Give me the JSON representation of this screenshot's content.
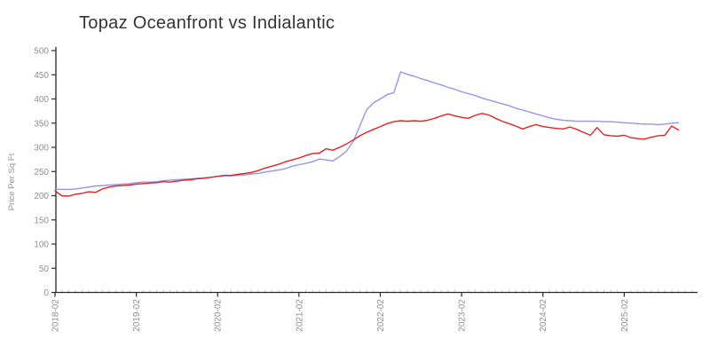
{
  "chart": {
    "title": "Topaz Oceanfront vs Indialantic"
  },
  "chart_data": {
    "type": "line",
    "title": "Topaz Oceanfront vs Indialantic",
    "xlabel": "",
    "ylabel": "Price Per Sq Ft",
    "ylim": [
      0,
      500
    ],
    "yticks": [
      0,
      50,
      100,
      150,
      200,
      250,
      300,
      350,
      400,
      450,
      500
    ],
    "xticks_major": [
      "2018-02",
      "2019-02",
      "2020-02",
      "2021-02",
      "2022-02",
      "2023-02",
      "2024-02",
      "2025-02"
    ],
    "grid": "off",
    "legend": "none",
    "axis_color": "#2a2a2a",
    "tick_label_color": "#8f8f8f",
    "minor_tick_color": "#c9c9c9",
    "x": [
      "2018-02",
      "2018-03",
      "2018-04",
      "2018-05",
      "2018-06",
      "2018-07",
      "2018-08",
      "2018-09",
      "2018-10",
      "2018-11",
      "2018-12",
      "2019-01",
      "2019-02",
      "2019-03",
      "2019-04",
      "2019-05",
      "2019-06",
      "2019-07",
      "2019-08",
      "2019-09",
      "2019-10",
      "2019-11",
      "2019-12",
      "2020-01",
      "2020-02",
      "2020-03",
      "2020-04",
      "2020-05",
      "2020-06",
      "2020-07",
      "2020-08",
      "2020-09",
      "2020-10",
      "2020-11",
      "2020-12",
      "2021-01",
      "2021-02",
      "2021-03",
      "2021-04",
      "2021-05",
      "2021-06",
      "2021-07",
      "2021-08",
      "2021-09",
      "2021-10",
      "2021-11",
      "2021-12",
      "2022-01",
      "2022-02",
      "2022-03",
      "2022-04",
      "2022-05",
      "2022-06",
      "2022-07",
      "2022-08",
      "2022-09",
      "2022-10",
      "2022-11",
      "2022-12",
      "2023-01",
      "2023-02",
      "2023-03",
      "2023-04",
      "2023-05",
      "2023-06",
      "2023-07",
      "2023-08",
      "2023-09",
      "2023-10",
      "2023-11",
      "2023-12",
      "2024-01",
      "2024-02",
      "2024-03",
      "2024-04",
      "2024-05",
      "2024-06",
      "2024-07",
      "2024-08",
      "2024-09",
      "2024-10",
      "2024-11",
      "2024-12",
      "2025-01",
      "2025-02",
      "2025-03",
      "2025-04",
      "2025-05",
      "2025-06",
      "2025-07",
      "2025-08",
      "2025-09",
      "2025-10"
    ],
    "series": [
      {
        "name": "Topaz Oceanfront",
        "color": "#9595ea",
        "values": [
          214,
          213,
          213,
          214,
          216,
          218,
          220,
          221,
          222,
          223,
          224,
          225,
          227,
          228,
          228,
          229,
          231,
          232,
          233,
          234,
          235,
          236,
          237,
          238,
          240,
          241,
          241,
          242,
          243,
          245,
          246,
          249,
          251,
          253,
          256,
          261,
          264,
          267,
          270,
          276,
          274,
          272,
          281,
          292,
          312,
          345,
          378,
          392,
          400,
          409,
          413,
          456,
          451,
          447,
          442,
          438,
          433,
          429,
          424,
          420,
          415,
          411,
          407,
          402,
          398,
          394,
          390,
          386,
          381,
          377,
          373,
          369,
          365,
          361,
          358,
          356,
          355,
          354,
          354,
          354,
          354,
          353,
          353,
          352,
          351,
          350,
          349,
          348,
          348,
          347,
          348,
          350,
          351
        ]
      },
      {
        "name": "Indialantic",
        "color": "#e02424",
        "values": [
          210,
          200,
          199,
          203,
          205,
          208,
          207,
          214,
          218,
          220,
          221,
          222,
          224,
          225,
          226,
          227,
          229,
          228,
          230,
          232,
          233,
          235,
          236,
          238,
          240,
          242,
          242,
          244,
          246,
          248,
          252,
          257,
          261,
          265,
          270,
          274,
          278,
          283,
          287,
          288,
          297,
          294,
          300,
          307,
          315,
          324,
          331,
          337,
          343,
          349,
          353,
          355,
          354,
          355,
          354,
          356,
          360,
          365,
          369,
          365,
          362,
          360,
          366,
          370,
          367,
          360,
          354,
          349,
          344,
          338,
          343,
          347,
          343,
          341,
          339,
          338,
          342,
          337,
          331,
          325,
          341,
          326,
          324,
          323,
          325,
          320,
          318,
          317,
          321,
          324,
          325,
          344,
          336
        ]
      }
    ]
  }
}
